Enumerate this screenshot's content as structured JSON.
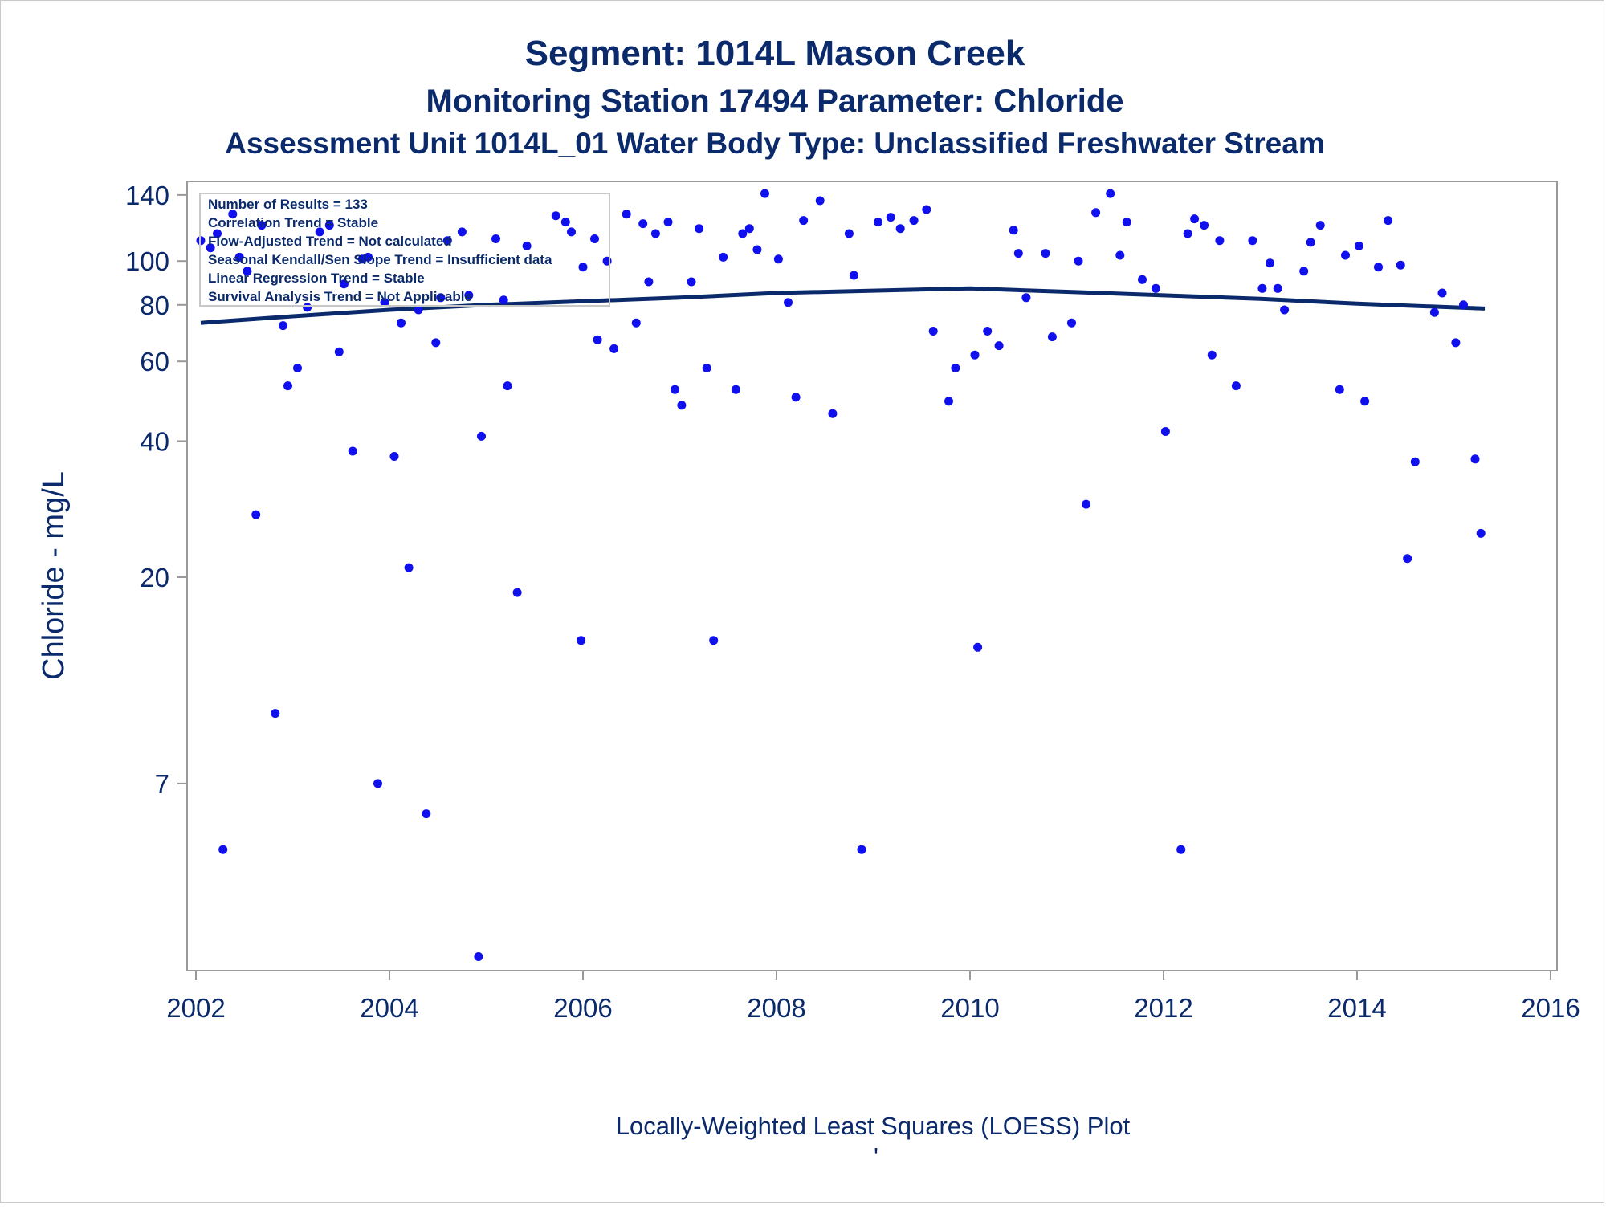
{
  "titles": {
    "line1": "Segment: 1014L  Mason Creek",
    "line2": "Monitoring Station 17494 Parameter: Chloride",
    "line3": "Assessment Unit 1014L_01   Water Body Type: Unclassified Freshwater Stream"
  },
  "stats_box": [
    "Number of Results = 133",
    "Correlation Trend = Stable",
    "Flow-Adjusted Trend = Not calculated",
    "Seasonal Kendall/Sen Slope Trend = Insufficient data",
    "Linear Regression Trend = Stable",
    "Survival Analysis Trend = Not Applicable"
  ],
  "footnote": "Locally-Weighted Least Squares (LOESS) Plot",
  "footnote_mark": "'",
  "colors": {
    "points": "#1010ee",
    "loess": "#0b2a6b",
    "text": "#0b2a6b",
    "axis": "#999999"
  },
  "chart_data": {
    "type": "scatter",
    "ylabel": "Chloride - mg/L",
    "xlabel": "",
    "y_scale": "log",
    "xlim": [
      2002,
      2016
    ],
    "ylim": [
      2.7,
      150
    ],
    "x_ticks": [
      2002,
      2004,
      2006,
      2008,
      2010,
      2012,
      2014,
      2016
    ],
    "y_ticks": [
      7,
      20,
      40,
      60,
      80,
      100,
      140
    ],
    "grid": false,
    "points": [
      [
        2002.05,
        111
      ],
      [
        2002.15,
        107
      ],
      [
        2002.22,
        115
      ],
      [
        2002.28,
        5
      ],
      [
        2002.38,
        127
      ],
      [
        2002.45,
        102
      ],
      [
        2002.53,
        95
      ],
      [
        2002.62,
        27.5
      ],
      [
        2002.68,
        120
      ],
      [
        2002.82,
        10
      ],
      [
        2002.9,
        72
      ],
      [
        2002.95,
        53
      ],
      [
        2003.05,
        58
      ],
      [
        2003.15,
        79
      ],
      [
        2003.28,
        116
      ],
      [
        2003.38,
        120
      ],
      [
        2003.48,
        63
      ],
      [
        2003.53,
        89
      ],
      [
        2003.62,
        38
      ],
      [
        2003.72,
        101
      ],
      [
        2003.78,
        102
      ],
      [
        2003.88,
        7
      ],
      [
        2003.95,
        81
      ],
      [
        2004.05,
        37
      ],
      [
        2004.12,
        73
      ],
      [
        2004.2,
        21
      ],
      [
        2004.3,
        78
      ],
      [
        2004.38,
        6
      ],
      [
        2004.48,
        66
      ],
      [
        2004.53,
        83
      ],
      [
        2004.6,
        111
      ],
      [
        2004.75,
        116
      ],
      [
        2004.82,
        84
      ],
      [
        2004.92,
        2.9
      ],
      [
        2004.95,
        41
      ],
      [
        2005.1,
        112
      ],
      [
        2005.18,
        82
      ],
      [
        2005.22,
        53
      ],
      [
        2005.32,
        18.5
      ],
      [
        2005.42,
        108
      ],
      [
        2005.72,
        126
      ],
      [
        2005.82,
        122
      ],
      [
        2005.88,
        116
      ],
      [
        2005.98,
        14.5
      ],
      [
        2006.0,
        97
      ],
      [
        2006.12,
        112
      ],
      [
        2006.15,
        67
      ],
      [
        2006.25,
        100
      ],
      [
        2006.32,
        64
      ],
      [
        2006.45,
        127
      ],
      [
        2006.55,
        73
      ],
      [
        2006.62,
        121
      ],
      [
        2006.68,
        90
      ],
      [
        2006.75,
        115
      ],
      [
        2006.88,
        122
      ],
      [
        2006.95,
        52
      ],
      [
        2007.02,
        48
      ],
      [
        2007.12,
        90
      ],
      [
        2007.2,
        118
      ],
      [
        2007.28,
        58
      ],
      [
        2007.35,
        14.5
      ],
      [
        2007.45,
        102
      ],
      [
        2007.58,
        52
      ],
      [
        2007.65,
        115
      ],
      [
        2007.72,
        118
      ],
      [
        2007.8,
        106
      ],
      [
        2007.88,
        141
      ],
      [
        2008.02,
        101
      ],
      [
        2008.12,
        81
      ],
      [
        2008.2,
        50
      ],
      [
        2008.28,
        123
      ],
      [
        2008.45,
        136
      ],
      [
        2008.58,
        46
      ],
      [
        2008.75,
        115
      ],
      [
        2008.8,
        93
      ],
      [
        2008.88,
        5
      ],
      [
        2009.05,
        122
      ],
      [
        2009.18,
        125
      ],
      [
        2009.28,
        118
      ],
      [
        2009.42,
        123
      ],
      [
        2009.55,
        130
      ],
      [
        2009.62,
        70
      ],
      [
        2009.78,
        49
      ],
      [
        2009.85,
        58
      ],
      [
        2010.05,
        62
      ],
      [
        2010.08,
        14
      ],
      [
        2010.18,
        70
      ],
      [
        2010.3,
        65
      ],
      [
        2010.45,
        117
      ],
      [
        2010.5,
        104
      ],
      [
        2010.58,
        83
      ],
      [
        2010.78,
        104
      ],
      [
        2010.85,
        68
      ],
      [
        2011.05,
        73
      ],
      [
        2011.12,
        100
      ],
      [
        2011.2,
        29
      ],
      [
        2011.3,
        128
      ],
      [
        2011.45,
        141
      ],
      [
        2011.55,
        103
      ],
      [
        2011.62,
        122
      ],
      [
        2011.78,
        91
      ],
      [
        2011.92,
        87
      ],
      [
        2012.02,
        42
      ],
      [
        2012.18,
        5
      ],
      [
        2012.25,
        115
      ],
      [
        2012.32,
        124
      ],
      [
        2012.42,
        120
      ],
      [
        2012.5,
        62
      ],
      [
        2012.58,
        111
      ],
      [
        2012.75,
        53
      ],
      [
        2012.92,
        111
      ],
      [
        2013.02,
        87
      ],
      [
        2013.1,
        99
      ],
      [
        2013.18,
        87
      ],
      [
        2013.25,
        78
      ],
      [
        2013.45,
        95
      ],
      [
        2013.52,
        110
      ],
      [
        2013.62,
        120
      ],
      [
        2013.82,
        52
      ],
      [
        2013.88,
        103
      ],
      [
        2014.02,
        108
      ],
      [
        2014.08,
        49
      ],
      [
        2014.22,
        97
      ],
      [
        2014.32,
        123
      ],
      [
        2014.45,
        98
      ],
      [
        2014.52,
        22
      ],
      [
        2014.6,
        36
      ],
      [
        2014.8,
        77
      ],
      [
        2014.88,
        85
      ],
      [
        2015.02,
        66
      ],
      [
        2015.1,
        80
      ],
      [
        2015.22,
        36.5
      ],
      [
        2015.28,
        25
      ]
    ],
    "loess": [
      [
        2002.05,
        73
      ],
      [
        2003.0,
        75.5
      ],
      [
        2004.0,
        78
      ],
      [
        2005.0,
        80
      ],
      [
        2006.0,
        81.5
      ],
      [
        2007.0,
        83
      ],
      [
        2008.0,
        85
      ],
      [
        2009.0,
        86
      ],
      [
        2010.0,
        87
      ],
      [
        2011.0,
        85.5
      ],
      [
        2012.0,
        84
      ],
      [
        2013.0,
        82.5
      ],
      [
        2014.0,
        80.5
      ],
      [
        2015.32,
        78.5
      ]
    ]
  }
}
